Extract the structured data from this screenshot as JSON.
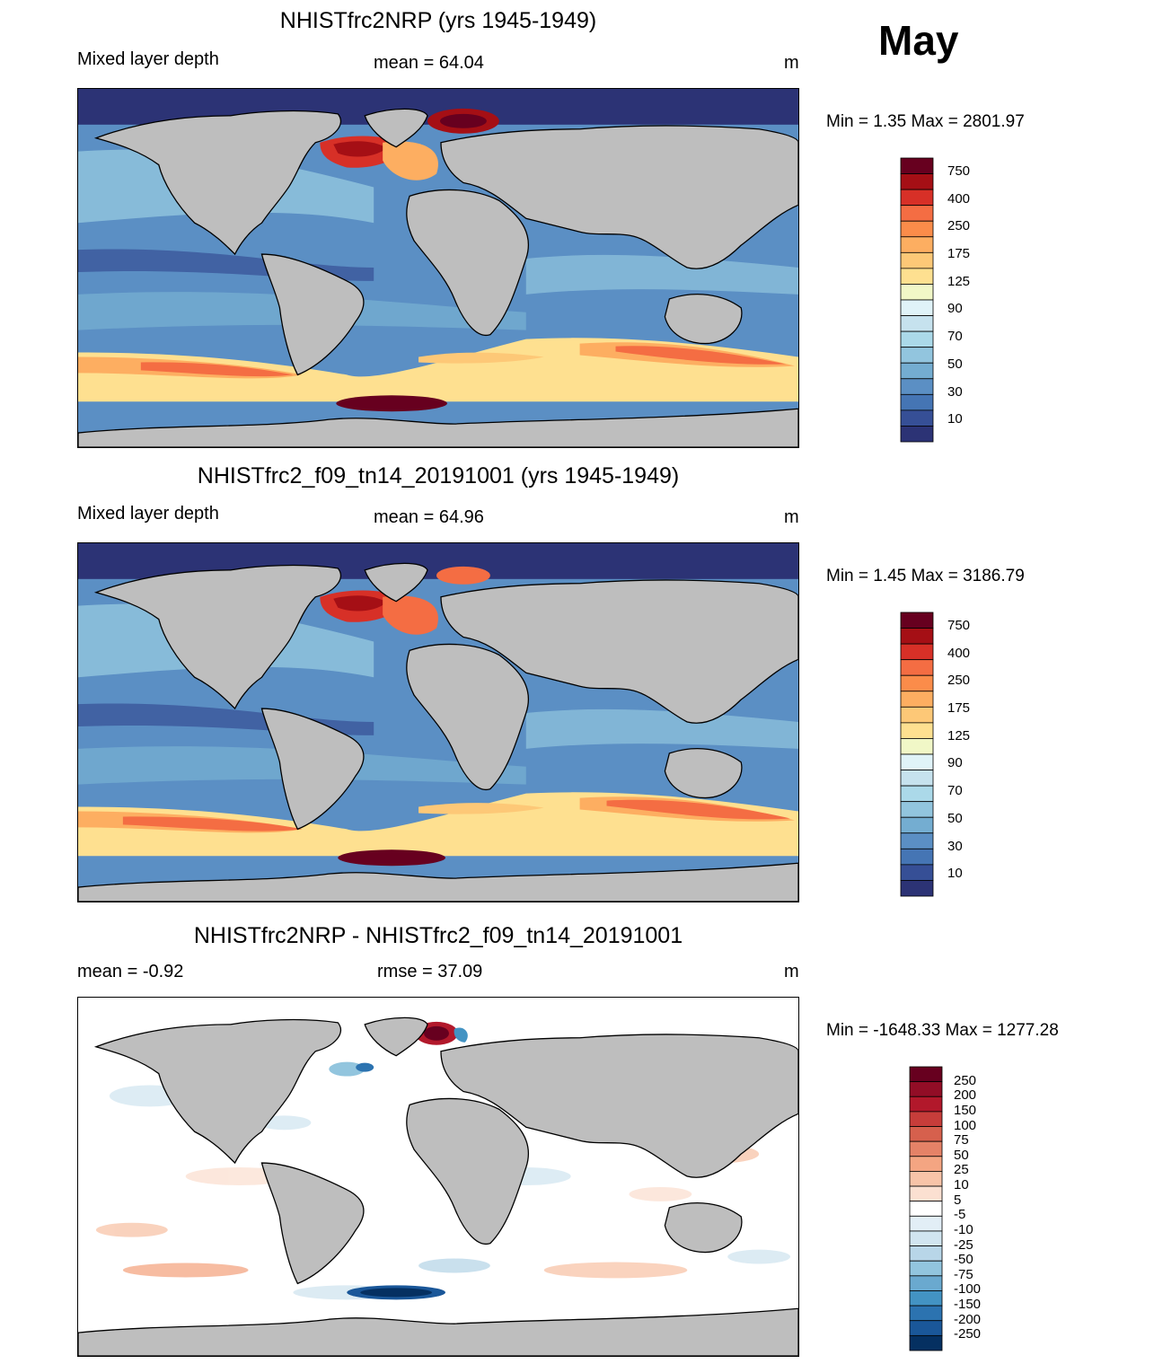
{
  "month": "May",
  "panels": [
    {
      "title": "NHISTfrc2NRP (yrs 1945-1949)",
      "left_label": "Mixed layer depth",
      "center_label": "mean =  64.04",
      "units": "m",
      "minmax": "Min =   1.35 Max = 2801.97"
    },
    {
      "title": "NHISTfrc2_f09_tn14_20191001 (yrs 1945-1949)",
      "left_label": "Mixed layer depth",
      "center_label": "mean =  64.96",
      "units": "m",
      "minmax": "Min =   1.45 Max = 3186.79"
    },
    {
      "title": "NHISTfrc2NRP - NHISTfrc2_f09_tn14_20191001",
      "left_label": "mean =  -0.92",
      "center_label": "rmse =  37.09",
      "units": "m",
      "minmax": "Min = -1648.33 Max = 1277.28"
    }
  ],
  "legends": {
    "mld": {
      "labels": [
        "750",
        "400",
        "250",
        "175",
        "125",
        "90",
        "70",
        "50",
        "30",
        "10"
      ],
      "colors": [
        "#67001f",
        "#a50f15",
        "#d73027",
        "#f46d43",
        "#fb8c4a",
        "#fdae61",
        "#fdc877",
        "#fee090",
        "#f1f7c7",
        "#e0f3f8",
        "#c6e2ee",
        "#abd9e9",
        "#92c5de",
        "#74add1",
        "#5b8fc4",
        "#4575b4",
        "#364f96",
        "#2c3375"
      ]
    },
    "diff": {
      "labels": [
        "250",
        "200",
        "150",
        "100",
        "75",
        "50",
        "25",
        "10",
        "5",
        "-5",
        "-10",
        "-25",
        "-50",
        "-75",
        "-100",
        "-150",
        "-200",
        "-250"
      ],
      "colors": [
        "#67001f",
        "#920d26",
        "#b2182b",
        "#c73d3a",
        "#d6604d",
        "#e58267",
        "#f4a582",
        "#f8c4a8",
        "#fbe0d1",
        "#ffffff",
        "#e2eef6",
        "#d1e5f0",
        "#b8d6e8",
        "#92c5de",
        "#6aa9cf",
        "#4393c3",
        "#2c73b0",
        "#1a5799",
        "#053061"
      ]
    }
  },
  "colors": {
    "land": "#bebebe",
    "ocean_mld_base": "#5b8fc4",
    "diff_base": "#ffffff"
  }
}
